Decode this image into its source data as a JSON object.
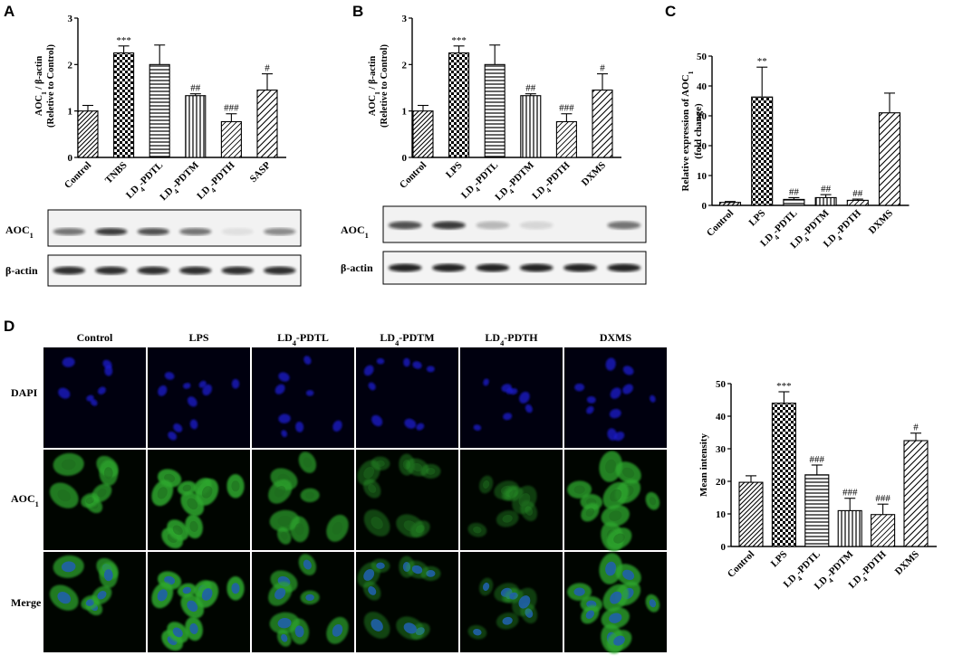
{
  "panels": {
    "A": {
      "letter": "A",
      "ylabel": "AOC1 / β-actin",
      "ylabel_sub": "(Reletive to Control)",
      "blot_labels": [
        "AOC1",
        "β-actin"
      ]
    },
    "B": {
      "letter": "B",
      "ylabel": "AOC1 / β-actin",
      "ylabel_sub": "(Reletive to Control)",
      "blot_labels": [
        "AOC1",
        "β-actin"
      ]
    },
    "C": {
      "letter": "C",
      "ylabel": "Relative expression of AOC1",
      "ylabel_sub": "(fold change)"
    },
    "D": {
      "letter": "D",
      "column_labels": [
        "Control",
        "LPS",
        "LD4-PDTL",
        "LD4-PDTM",
        "LD4-PDTH",
        "DXMS"
      ],
      "row_labels": [
        "DAPI",
        "AOC1",
        "Merge"
      ],
      "ylabel": "Mean intensity"
    }
  },
  "colors": {
    "dapi_bg": "#00000f",
    "dapi_nucleus": "#1a1acf",
    "aoc1_bg": "#000500",
    "aoc1_cell": "#2fa82f",
    "merge_nucleus": "#2060a8"
  },
  "chart_data": [
    {
      "id": "A",
      "type": "bar",
      "categories": [
        "Control",
        "TNBS",
        "LD4-PDTL",
        "LD4-PDTM",
        "LD4-PDTH",
        "SASP"
      ],
      "values": [
        1.0,
        2.25,
        2.0,
        1.33,
        0.77,
        1.45
      ],
      "errors": [
        0.12,
        0.15,
        0.42,
        0.04,
        0.17,
        0.35
      ],
      "annotations": [
        "",
        "***",
        "",
        "##",
        "###",
        "#"
      ],
      "ylim": [
        0,
        3
      ],
      "yticks": [
        0,
        1,
        2,
        3
      ]
    },
    {
      "id": "B",
      "type": "bar",
      "categories": [
        "Control",
        "LPS",
        "LD4-PDTL",
        "LD4-PDTM",
        "LD4-PDTH",
        "DXMS"
      ],
      "values": [
        1.0,
        2.25,
        2.0,
        1.33,
        0.77,
        1.45
      ],
      "errors": [
        0.12,
        0.15,
        0.42,
        0.04,
        0.17,
        0.35
      ],
      "annotations": [
        "",
        "***",
        "",
        "##",
        "###",
        "#"
      ],
      "ylim": [
        0,
        3
      ],
      "yticks": [
        0,
        1,
        2,
        3
      ]
    },
    {
      "id": "C",
      "type": "bar",
      "categories": [
        "Control",
        "LPS",
        "LD4-PDTL",
        "LD4-PDTM",
        "LD4-PDTH",
        "DXMS"
      ],
      "values": [
        1.0,
        36.3,
        2.0,
        2.6,
        1.7,
        31.0
      ],
      "errors": [
        0.3,
        10.0,
        0.6,
        1.0,
        0.4,
        6.6
      ],
      "annotations": [
        "",
        "**",
        "##",
        "##",
        "##",
        ""
      ],
      "ylim": [
        0,
        50
      ],
      "yticks": [
        0,
        10,
        20,
        30,
        40,
        50
      ]
    },
    {
      "id": "D",
      "type": "bar",
      "categories": [
        "Control",
        "LPS",
        "LD4-PDTL",
        "LD4-PDTM",
        "LD4-PDTH",
        "DXMS"
      ],
      "values": [
        19.7,
        44.0,
        22.0,
        11.0,
        9.8,
        32.5
      ],
      "errors": [
        2.0,
        3.5,
        3.0,
        3.8,
        3.2,
        2.3
      ],
      "annotations": [
        "",
        "***",
        "###",
        "###",
        "###",
        "#"
      ],
      "ylim": [
        0,
        50
      ],
      "yticks": [
        0,
        10,
        20,
        30,
        40,
        50
      ]
    }
  ]
}
